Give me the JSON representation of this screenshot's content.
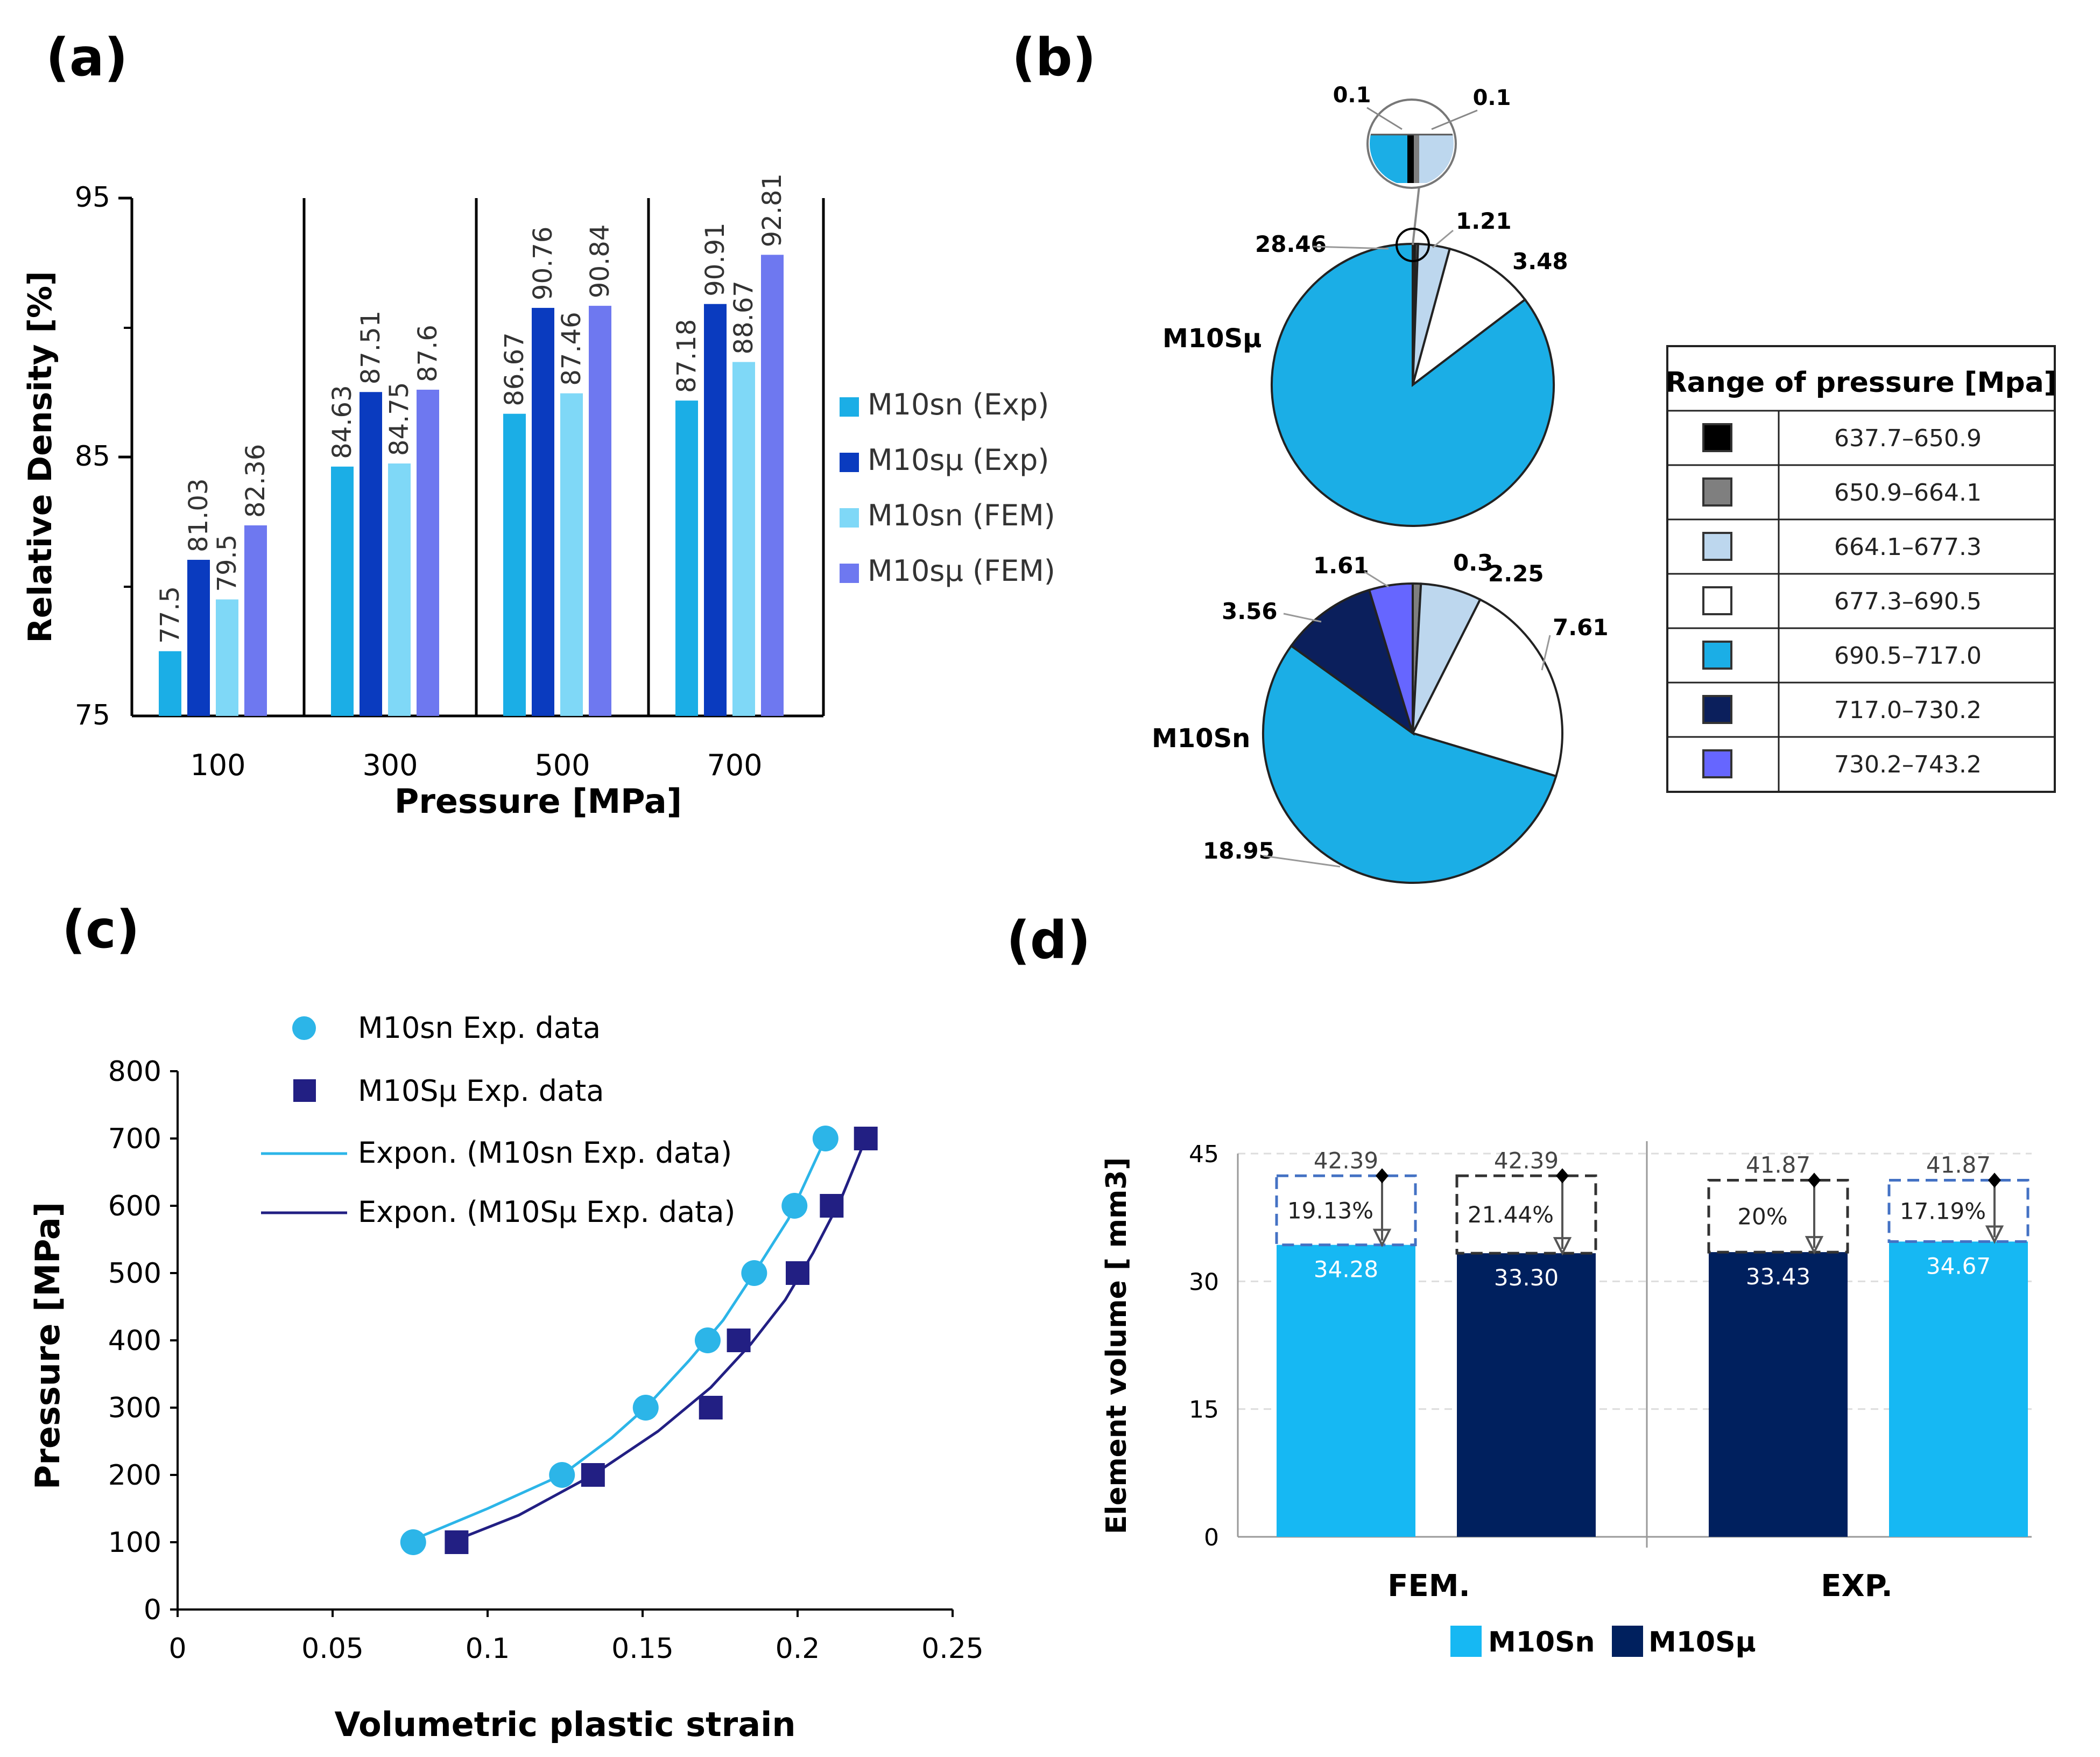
{
  "colors": {
    "m10sn_exp": "#1BAEE6",
    "m10su_exp": "#0A3BBF",
    "m10sn_fem": "#7FD8F7",
    "m10su_fem": "#6E78F0",
    "pie_black": "#000000",
    "pie_grey": "#7F7F7F",
    "pie_lightblue": "#BDD7EE",
    "pie_white": "#FFFFFF",
    "pie_cyan": "#1BAEE6",
    "pie_navy": "#0B1F5C",
    "pie_purple": "#6666FF",
    "d_light": "#16B8F3",
    "d_dark": "#00205E",
    "c_m10sn": "#2CB5E8",
    "c_m10su": "#221F83"
  },
  "chart_data": [
    {
      "id": "a",
      "panel_label": "(a)",
      "type": "bar",
      "xlabel": "Pressure [MPa]",
      "ylabel": "Relative Density [%]",
      "ylim": [
        75,
        95
      ],
      "yticks": [
        "75",
        "85",
        "95"
      ],
      "categories": [
        "100",
        "300",
        "500",
        "700"
      ],
      "series": [
        {
          "name": "M10sn (Exp)",
          "color_key": "m10sn_exp",
          "values": [
            77.5,
            84.63,
            86.67,
            87.18
          ],
          "labels": [
            "77.5",
            "84.63",
            "86.67",
            "87.18"
          ]
        },
        {
          "name": "M10sμ (Exp)",
          "color_key": "m10su_exp",
          "values": [
            81.03,
            87.51,
            90.76,
            90.91
          ],
          "labels": [
            "81.03",
            "87.51",
            "90.76",
            "90.91"
          ]
        },
        {
          "name": "M10sn (FEM)",
          "color_key": "m10sn_fem",
          "values": [
            79.5,
            84.75,
            87.46,
            88.67
          ],
          "labels": [
            "79.5",
            "84.75",
            "87.46",
            "88.67"
          ]
        },
        {
          "name": "M10sμ (FEM)",
          "color_key": "m10su_fem",
          "values": [
            82.36,
            87.6,
            90.84,
            92.81
          ],
          "labels": [
            "82.36",
            "87.6",
            "90.84",
            "92.81"
          ]
        }
      ]
    },
    {
      "id": "b",
      "panel_label": "(b)",
      "type": "pie",
      "table_title": "Range of pressure [Mpa]",
      "ranges": [
        {
          "label": "637.7–650.9",
          "color_key": "pie_black"
        },
        {
          "label": "650.9–664.1",
          "color_key": "pie_grey"
        },
        {
          "label": "664.1–677.3",
          "color_key": "pie_lightblue"
        },
        {
          "label": "677.3–690.5",
          "color_key": "pie_white"
        },
        {
          "label": "690.5–717.0",
          "color_key": "pie_cyan"
        },
        {
          "label": "717.0–730.2",
          "color_key": "pie_navy"
        },
        {
          "label": "730.2–743.2",
          "color_key": "pie_purple"
        }
      ],
      "pies": [
        {
          "name": "M10Sμ",
          "slices": [
            {
              "value": 0.1,
              "label": "0.1",
              "color_key": "pie_black"
            },
            {
              "value": 0.1,
              "label": "0.1",
              "color_key": "pie_grey"
            },
            {
              "value": 1.21,
              "label": "1.21",
              "color_key": "pie_lightblue"
            },
            {
              "value": 3.48,
              "label": "3.48",
              "color_key": "pie_white"
            },
            {
              "value": 28.46,
              "label": "28.46",
              "color_key": "pie_cyan"
            }
          ]
        },
        {
          "name": "M10Sn",
          "slices": [
            {
              "value": 0.3,
              "label": "0.3",
              "color_key": "pie_grey"
            },
            {
              "value": 2.25,
              "label": "2.25",
              "color_key": "pie_lightblue"
            },
            {
              "value": 7.61,
              "label": "7.61",
              "color_key": "pie_white"
            },
            {
              "value": 18.95,
              "label": "18.95",
              "color_key": "pie_cyan"
            },
            {
              "value": 3.56,
              "label": "3.56",
              "color_key": "pie_navy"
            },
            {
              "value": 1.61,
              "label": "1.61",
              "color_key": "pie_purple"
            }
          ]
        }
      ]
    },
    {
      "id": "c",
      "panel_label": "(c)",
      "type": "scatter",
      "xlabel": "Volumetric plastic strain",
      "ylabel": "Pressure [MPa]",
      "xlim": [
        0,
        0.25
      ],
      "ylim": [
        0,
        800
      ],
      "xticks": [
        "0",
        "0.05",
        "0.1",
        "0.15",
        "0.2",
        "0.25"
      ],
      "yticks": [
        "0",
        "100",
        "200",
        "300",
        "400",
        "500",
        "600",
        "700",
        "800"
      ],
      "series": [
        {
          "name": "M10sn Exp. data",
          "marker": "circle",
          "color_key": "c_m10sn",
          "x": [
            0.076,
            0.124,
            0.151,
            0.171,
            0.186,
            0.199,
            0.209
          ],
          "y": [
            100,
            200,
            300,
            400,
            500,
            600,
            700
          ]
        },
        {
          "name": "M10Sμ Exp. data",
          "marker": "square",
          "color_key": "c_m10su",
          "x": [
            0.09,
            0.134,
            0.172,
            0.181,
            0.2,
            0.211,
            0.222
          ],
          "y": [
            100,
            200,
            300,
            400,
            500,
            600,
            700
          ]
        }
      ],
      "fits": [
        {
          "name": "Expon. (M10sn Exp. data)",
          "color_key": "c_m10sn",
          "x": [
            0.074,
            0.1,
            0.124,
            0.14,
            0.151,
            0.165,
            0.176,
            0.186,
            0.197,
            0.209
          ],
          "y": [
            100,
            150,
            200,
            255,
            300,
            370,
            430,
            500,
            580,
            700
          ]
        },
        {
          "name": "Expon. (M10Sμ Exp. data)",
          "color_key": "c_m10su",
          "x": [
            0.088,
            0.11,
            0.134,
            0.155,
            0.172,
            0.185,
            0.196,
            0.205,
            0.214,
            0.222
          ],
          "y": [
            100,
            140,
            200,
            265,
            330,
            395,
            460,
            530,
            610,
            700
          ]
        }
      ]
    },
    {
      "id": "d",
      "panel_label": "(d)",
      "type": "bar",
      "ylabel": "Element volume [ mm3]",
      "ylim": [
        0,
        45
      ],
      "yticks": [
        "0",
        "15",
        "30",
        "45"
      ],
      "groups": [
        "FEM.",
        "EXP."
      ],
      "legend": [
        {
          "name": "M10Sn",
          "color_key": "d_light"
        },
        {
          "name": "M10Sμ",
          "color_key": "d_dark"
        }
      ],
      "bars": [
        {
          "group": "FEM.",
          "series": "M10Sn",
          "color_key": "d_light",
          "value": 34.28,
          "label": "34.28",
          "total": 42.39,
          "total_label": "42.39",
          "pct_label": "19.13%",
          "box": "blue"
        },
        {
          "group": "FEM.",
          "series": "M10Sμ",
          "color_key": "d_dark",
          "value": 33.3,
          "label": "33.30",
          "total": 42.39,
          "total_label": "42.39",
          "pct_label": "21.44%",
          "box": "black"
        },
        {
          "group": "EXP.",
          "series": "M10Sμ",
          "color_key": "d_dark",
          "value": 33.43,
          "label": "33.43",
          "total": 41.87,
          "total_label": "41.87",
          "pct_label": "20%",
          "box": "black"
        },
        {
          "group": "EXP.",
          "series": "M10Sn",
          "color_key": "d_light",
          "value": 34.67,
          "label": "34.67",
          "total": 41.87,
          "total_label": "41.87",
          "pct_label": "17.19%",
          "box": "blue"
        }
      ]
    }
  ]
}
